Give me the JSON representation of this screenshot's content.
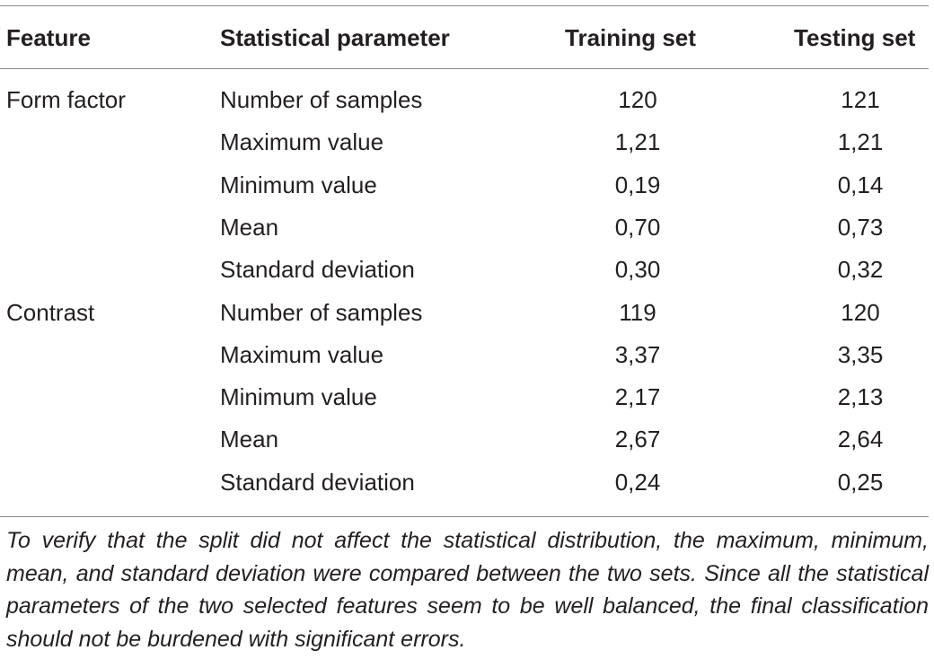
{
  "table": {
    "headers": [
      "Feature",
      "Statistical parameter",
      "Training set",
      "Testing set"
    ],
    "rows": [
      {
        "feature": "Form factor",
        "parameter": "Number of samples",
        "training": "120",
        "testing": "121"
      },
      {
        "feature": "",
        "parameter": "Maximum value",
        "training": "1,21",
        "testing": "1,21"
      },
      {
        "feature": "",
        "parameter": "Minimum value",
        "training": "0,19",
        "testing": "0,14"
      },
      {
        "feature": "",
        "parameter": "Mean",
        "training": "0,70",
        "testing": "0,73"
      },
      {
        "feature": "",
        "parameter": "Standard deviation",
        "training": "0,30",
        "testing": "0,32"
      },
      {
        "feature": "Contrast",
        "parameter": "Number of samples",
        "training": "119",
        "testing": "120"
      },
      {
        "feature": "",
        "parameter": "Maximum value",
        "training": "3,37",
        "testing": "3,35"
      },
      {
        "feature": "",
        "parameter": "Minimum value",
        "training": "2,17",
        "testing": "2,13"
      },
      {
        "feature": "",
        "parameter": "Mean",
        "training": "2,67",
        "testing": "2,64"
      },
      {
        "feature": "",
        "parameter": "Standard deviation",
        "training": "0,24",
        "testing": "0,25"
      }
    ]
  },
  "footnote": "To verify that the split did not affect the statistical distribution, the maximum, minimum, mean, and standard deviation were compared between the two sets. Since all the statistical parameters of the two selected features seem to be well balanced, the final classification should not be burdened with significant errors."
}
